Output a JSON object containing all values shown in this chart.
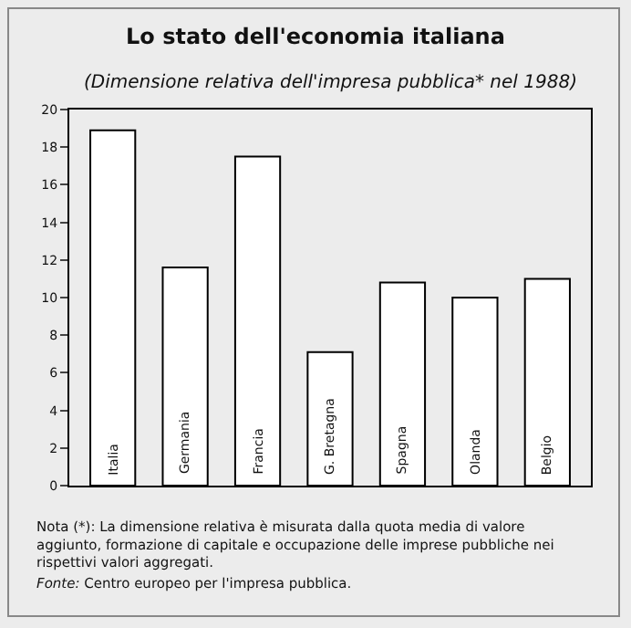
{
  "chart_data": {
    "type": "bar",
    "title": "Lo stato dell'economia italiana",
    "subtitle": "(Dimensione relativa dell'impresa pubblica* nel 1988)",
    "categories": [
      "Italia",
      "Germania",
      "Francia",
      "G. Bretagna",
      "Spagna",
      "Olanda",
      "Belgio"
    ],
    "values": [
      18.9,
      11.6,
      17.5,
      7.1,
      10.8,
      10.0,
      11.0
    ],
    "color": "#ffffff",
    "ylim": [
      0,
      20
    ],
    "yticks": [
      0,
      2,
      4,
      6,
      8,
      10,
      12,
      14,
      16,
      18,
      20
    ],
    "annotations": [
      "Nota (*): La dimensione relativa è misurata dalla quota media di valore aggiunto, formazione di capitale e occupazione delle imprese pubbliche nei rispettivi valori aggregati.",
      "Fonte: Centro europeo per l'impresa pubblica."
    ]
  }
}
